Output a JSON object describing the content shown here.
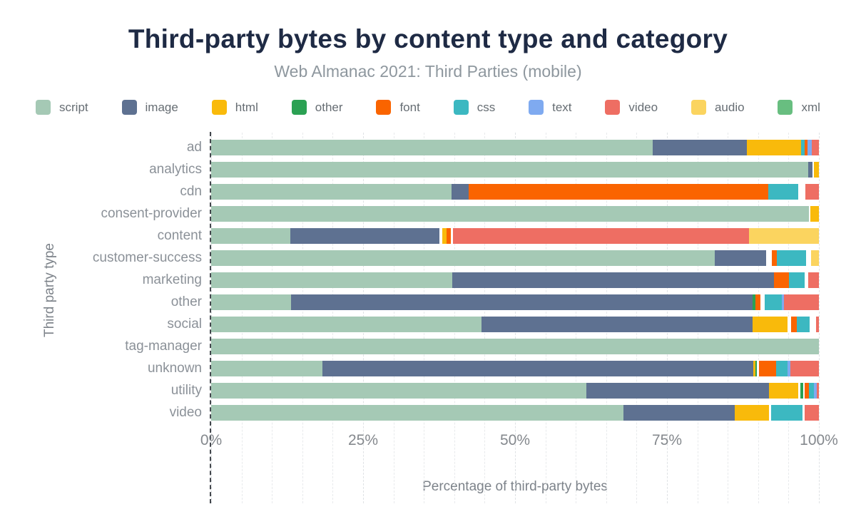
{
  "header": {
    "title": "Third-party bytes by content type and category",
    "subtitle": "Web Almanac 2021: Third Parties (mobile)"
  },
  "colors": {
    "script": "#a5c9b5",
    "image": "#5e7191",
    "html": "#f9ba0b",
    "other": "#2ba153",
    "font": "#fa6400",
    "css": "#3cb8c1",
    "text": "#7faaf0",
    "video": "#ee6e63",
    "audio": "#fbd45f",
    "xml": "#68be80",
    "gap": "#ffffff",
    "title_text": "#1e2a44",
    "subtitle_text": "#8e979e"
  },
  "legend": [
    "script",
    "image",
    "html",
    "other",
    "font",
    "css",
    "text",
    "video",
    "audio",
    "xml"
  ],
  "chart_data": {
    "type": "bar",
    "stacked": true,
    "orientation": "horizontal",
    "unit": "percent",
    "title": "Third-party bytes by content type and category",
    "subtitle": "Web Almanac 2021: Third Parties (mobile)",
    "xlabel": "Percentage of third-party bytes",
    "ylabel": "Third party type",
    "xlim": [
      0,
      100
    ],
    "x_ticks": [
      "0%",
      "25%",
      "50%",
      "75%",
      "100%"
    ],
    "x_tick_values": [
      0,
      25,
      50,
      75,
      100
    ],
    "gridline_step_percent": 5,
    "legend_position": "top",
    "categories": [
      "ad",
      "analytics",
      "cdn",
      "consent-provider",
      "content",
      "customer-success",
      "marketing",
      "other",
      "social",
      "tag-manager",
      "unknown",
      "utility",
      "video"
    ],
    "rows": [
      {
        "label": "ad",
        "segments": [
          {
            "c": "script",
            "v": 72.7
          },
          {
            "c": "image",
            "v": 15.4
          },
          {
            "c": "html",
            "v": 9.0
          },
          {
            "c": "css",
            "v": 0.5
          },
          {
            "c": "font",
            "v": 0.5
          },
          {
            "c": "text",
            "v": 0.7
          },
          {
            "c": "video",
            "v": 1.2
          }
        ]
      },
      {
        "label": "analytics",
        "segments": [
          {
            "c": "script",
            "v": 98.2
          },
          {
            "c": "image",
            "v": 0.7
          },
          {
            "c": "gap",
            "v": 0.3
          },
          {
            "c": "html",
            "v": 0.8
          }
        ]
      },
      {
        "label": "cdn",
        "segments": [
          {
            "c": "script",
            "v": 39.5
          },
          {
            "c": "image",
            "v": 2.9
          },
          {
            "c": "font",
            "v": 49.3
          },
          {
            "c": "css",
            "v": 4.9
          },
          {
            "c": "gap",
            "v": 1.2
          },
          {
            "c": "video",
            "v": 2.2
          }
        ]
      },
      {
        "label": "consent-provider",
        "segments": [
          {
            "c": "script",
            "v": 98.3
          },
          {
            "c": "gap",
            "v": 0.3
          },
          {
            "c": "html",
            "v": 1.4
          }
        ]
      },
      {
        "label": "content",
        "segments": [
          {
            "c": "script",
            "v": 13.0
          },
          {
            "c": "image",
            "v": 24.6
          },
          {
            "c": "gap",
            "v": 0.4
          },
          {
            "c": "html",
            "v": 0.7
          },
          {
            "c": "font",
            "v": 0.7
          },
          {
            "c": "gap",
            "v": 0.4
          },
          {
            "c": "video",
            "v": 48.7
          },
          {
            "c": "audio",
            "v": 11.5
          }
        ]
      },
      {
        "label": "customer-success",
        "segments": [
          {
            "c": "script",
            "v": 82.9
          },
          {
            "c": "image",
            "v": 8.4
          },
          {
            "c": "gap",
            "v": 1.0
          },
          {
            "c": "font",
            "v": 0.8
          },
          {
            "c": "css",
            "v": 4.8
          },
          {
            "c": "gap",
            "v": 0.8
          },
          {
            "c": "audio",
            "v": 1.3
          }
        ]
      },
      {
        "label": "marketing",
        "segments": [
          {
            "c": "script",
            "v": 39.7
          },
          {
            "c": "image",
            "v": 52.9
          },
          {
            "c": "font",
            "v": 2.5
          },
          {
            "c": "css",
            "v": 2.5
          },
          {
            "c": "gap",
            "v": 0.6
          },
          {
            "c": "video",
            "v": 1.8
          }
        ]
      },
      {
        "label": "other",
        "segments": [
          {
            "c": "script",
            "v": 13.2
          },
          {
            "c": "image",
            "v": 75.9
          },
          {
            "c": "other",
            "v": 0.4
          },
          {
            "c": "font",
            "v": 0.9
          },
          {
            "c": "gap",
            "v": 0.7
          },
          {
            "c": "css",
            "v": 2.8
          },
          {
            "c": "text",
            "v": 0.4
          },
          {
            "c": "video",
            "v": 5.7
          }
        ]
      },
      {
        "label": "social",
        "segments": [
          {
            "c": "script",
            "v": 44.5
          },
          {
            "c": "image",
            "v": 44.6
          },
          {
            "c": "html",
            "v": 5.7
          },
          {
            "c": "gap",
            "v": 0.6
          },
          {
            "c": "font",
            "v": 1.0
          },
          {
            "c": "css",
            "v": 2.1
          },
          {
            "c": "gap",
            "v": 1.0
          },
          {
            "c": "video",
            "v": 0.5
          }
        ]
      },
      {
        "label": "tag-manager",
        "segments": [
          {
            "c": "script",
            "v": 100
          }
        ]
      },
      {
        "label": "unknown",
        "segments": [
          {
            "c": "script",
            "v": 18.3
          },
          {
            "c": "image",
            "v": 70.9
          },
          {
            "c": "html",
            "v": 0.3
          },
          {
            "c": "other",
            "v": 0.3
          },
          {
            "c": "gap",
            "v": 0.3
          },
          {
            "c": "font",
            "v": 2.9
          },
          {
            "c": "css",
            "v": 1.8
          },
          {
            "c": "text",
            "v": 0.5
          },
          {
            "c": "video",
            "v": 4.7
          }
        ]
      },
      {
        "label": "utility",
        "segments": [
          {
            "c": "script",
            "v": 61.7
          },
          {
            "c": "image",
            "v": 30.1
          },
          {
            "c": "html",
            "v": 4.8
          },
          {
            "c": "gap",
            "v": 0.3
          },
          {
            "c": "other",
            "v": 0.5
          },
          {
            "c": "gap",
            "v": 0.2
          },
          {
            "c": "font",
            "v": 0.8
          },
          {
            "c": "css",
            "v": 0.8
          },
          {
            "c": "text",
            "v": 0.5
          },
          {
            "c": "video",
            "v": 0.3
          }
        ]
      },
      {
        "label": "video",
        "segments": [
          {
            "c": "script",
            "v": 67.8
          },
          {
            "c": "image",
            "v": 18.4
          },
          {
            "c": "html",
            "v": 5.6
          },
          {
            "c": "gap",
            "v": 0.3
          },
          {
            "c": "css",
            "v": 5.2
          },
          {
            "c": "gap",
            "v": 0.4
          },
          {
            "c": "video",
            "v": 2.3
          }
        ]
      }
    ]
  }
}
